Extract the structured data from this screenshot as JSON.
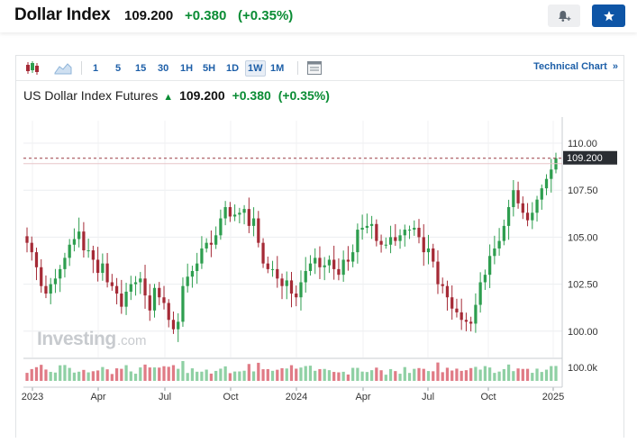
{
  "header": {
    "title": "Dollar Index",
    "price": "109.200",
    "change": "+0.380",
    "change_pct": "(+0.35%)",
    "alert_icon": "bell-plus-icon",
    "watchlist_icon": "star-icon"
  },
  "toolbar": {
    "chart_type_icons": [
      "candlestick-icon",
      "area-chart-icon"
    ],
    "intervals": [
      "1",
      "5",
      "15",
      "30",
      "1H",
      "5H",
      "1D",
      "1W",
      "1M"
    ],
    "active_interval": "1W",
    "layout_icon": "layout-icon",
    "technical_link": "Technical Chart",
    "technical_link_arrow": "»"
  },
  "instrument": {
    "name": "US Dollar Index Futures",
    "price": "109.200",
    "change": "+0.380",
    "change_pct": "(+0.35%)"
  },
  "watermark": {
    "brand": "Investing",
    "suffix": ".com"
  },
  "colors": {
    "up": "#2e9e4f",
    "down": "#a52a36",
    "brand": "#0e55a6",
    "positive_text": "#0a8c34"
  },
  "chart_data": {
    "type": "candlestick",
    "title": "US Dollar Index Futures",
    "interval": "1W",
    "y_axis": {
      "ticks": [
        "110.00",
        "107.50",
        "105.00",
        "102.50",
        "100.00"
      ],
      "range": [
        98.6,
        111.2
      ]
    },
    "x_axis": {
      "ticks": [
        "2023",
        "Apr",
        "Jul",
        "Oct",
        "2024",
        "Apr",
        "Jul",
        "Oct",
        "2025"
      ]
    },
    "last_price_label": "109.200",
    "last_price": 109.2,
    "volume_axis_label": "100.0k",
    "grid": true,
    "close": [
      104.7,
      104.2,
      103.4,
      102.4,
      102.0,
      102.5,
      102.8,
      103.3,
      103.9,
      104.6,
      104.9,
      105.3,
      104.3,
      104.3,
      103.8,
      103.1,
      103.6,
      102.6,
      102.4,
      102.0,
      101.3,
      102.1,
      102.5,
      102.6,
      102.8,
      101.9,
      101.1,
      102.3,
      101.8,
      101.5,
      100.6,
      100.1,
      100.5,
      102.4,
      102.9,
      103.2,
      103.6,
      104.4,
      104.7,
      104.6,
      105.1,
      106.0,
      106.6,
      106.1,
      106.2,
      106.3,
      106.5,
      105.6,
      106.0,
      104.7,
      103.6,
      103.3,
      103.3,
      102.8,
      102.4,
      102.7,
      102.0,
      101.8,
      102.6,
      103.2,
      103.6,
      103.9,
      103.4,
      103.5,
      103.8,
      103.3,
      103.0,
      103.8,
      103.7,
      104.2,
      105.4,
      105.5,
      105.6,
      105.7,
      104.8,
      104.6,
      104.6,
      105.0,
      104.8,
      105.1,
      105.4,
      105.4,
      105.5,
      105.0,
      104.2,
      104.4,
      103.7,
      102.5,
      102.4,
      101.8,
      101.2,
      101.0,
      100.6,
      100.5,
      100.4,
      101.4,
      102.6,
      103.0,
      104.0,
      104.4,
      104.8,
      105.6,
      106.6,
      107.5,
      106.8,
      106.3,
      105.9,
      106.3,
      107.0,
      107.6,
      108.1,
      108.6,
      109.2
    ]
  }
}
